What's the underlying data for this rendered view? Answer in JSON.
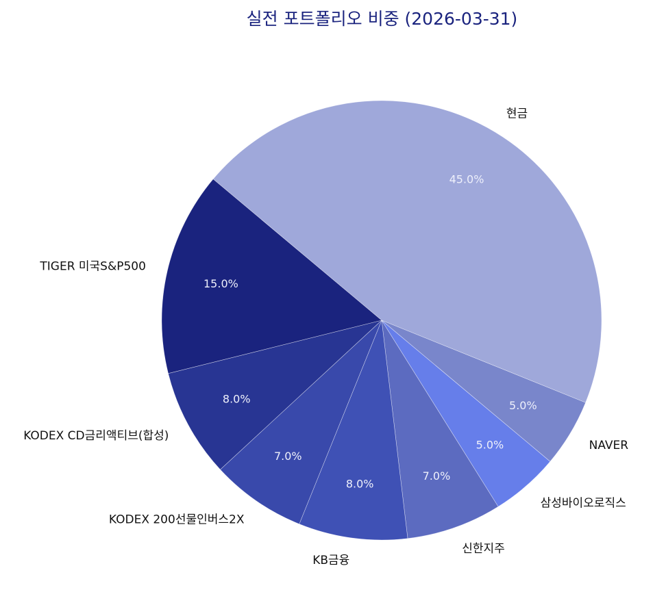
{
  "chart_data": {
    "type": "pie",
    "title": "실전 포트폴리오 비중 (2026-03-31)",
    "start_angle_deg": 140,
    "direction": "clockwise",
    "autopct_format": "%.1f%%",
    "slices": [
      {
        "label": "현금",
        "value": 45.0,
        "pct_text": "45.0%",
        "color": "#9fa8da"
      },
      {
        "label": "NAVER",
        "value": 5.0,
        "pct_text": "5.0%",
        "color": "#7986cb"
      },
      {
        "label": "삼성바이오로직스",
        "value": 5.0,
        "pct_text": "5.0%",
        "color": "#667eea"
      },
      {
        "label": "신한지주",
        "value": 7.0,
        "pct_text": "7.0%",
        "color": "#5c6bc0"
      },
      {
        "label": "KB금융",
        "value": 8.0,
        "pct_text": "8.0%",
        "color": "#3f51b5"
      },
      {
        "label": "KODEX 200선물인버스2X",
        "value": 7.0,
        "pct_text": "7.0%",
        "color": "#3949ab"
      },
      {
        "label": "KODEX CD금리액티브(합성)",
        "value": 8.0,
        "pct_text": "8.0%",
        "color": "#283593"
      },
      {
        "label": "TIGER 미국S&P500",
        "value": 15.0,
        "pct_text": "15.0%",
        "color": "#1a237e"
      }
    ]
  },
  "style": {
    "title_color": "#1a237e",
    "edge_color": "#ffffff"
  }
}
